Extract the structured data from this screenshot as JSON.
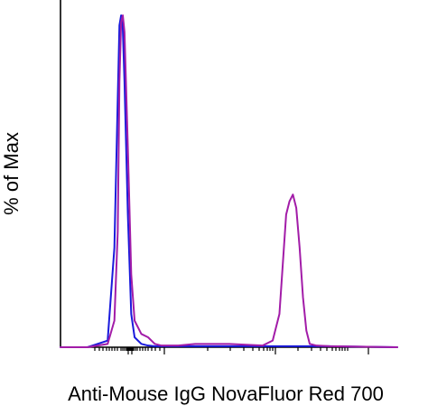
{
  "chart_data": {
    "type": "line",
    "title": "",
    "xlabel": "Anti-Mouse IgG NovaFluor Red 700",
    "ylabel": "% of Max",
    "xscale": "biexponential",
    "ylim": [
      0,
      100
    ],
    "grid": false,
    "legend": "none",
    "x": [
      0.0,
      0.08,
      0.14,
      0.16,
      0.17,
      0.175,
      0.18,
      0.185,
      0.19,
      0.2,
      0.21,
      0.22,
      0.24,
      0.26,
      0.28,
      0.3,
      0.35,
      0.4,
      0.5,
      0.6,
      0.63,
      0.65,
      0.66,
      0.67,
      0.68,
      0.69,
      0.7,
      0.71,
      0.72,
      0.73,
      0.74,
      0.76,
      0.8,
      1.0
    ],
    "series": [
      {
        "color": "#1a1adc",
        "values": [
          0,
          0,
          2,
          30,
          75,
          97,
          100,
          96,
          80,
          40,
          10,
          3,
          1,
          0.5,
          0.3,
          0.3,
          0.3,
          0.3,
          0.3,
          0.3,
          0.3,
          0.3,
          0.3,
          0.3,
          0.3,
          0.3,
          0.3,
          0.3,
          0.3,
          0.3,
          0.3,
          0.3,
          0.3,
          0
        ]
      },
      {
        "color": "#a21ca8",
        "values": [
          0,
          0,
          1,
          8,
          35,
          80,
          98,
          100,
          95,
          60,
          22,
          8,
          4,
          3,
          1,
          0.5,
          0.5,
          1,
          1,
          0.5,
          2,
          10,
          25,
          40,
          44,
          46,
          42,
          30,
          15,
          5,
          1,
          0.5,
          0.3,
          0
        ]
      }
    ]
  }
}
